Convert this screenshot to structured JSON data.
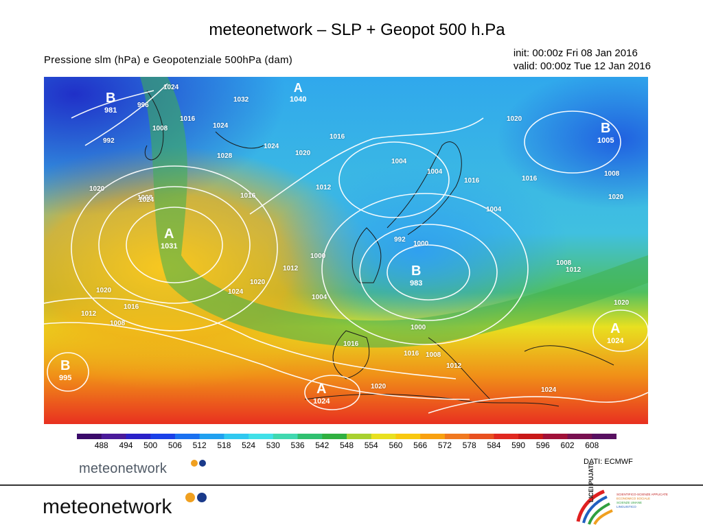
{
  "slide": {
    "title": "meteonetwork – SLP + Geopot 500 h.Pa"
  },
  "map": {
    "header_left": "Pressione slm (hPa) e Geopotenziale 500hPa (dam)",
    "init": "init: 00:00z Fri 08 Jan 2016",
    "valid": "valid: 00:00z Tue 12 Jan 2016",
    "pressure_centers": [
      {
        "type": "B",
        "value": "981"
      },
      {
        "type": "A",
        "value": "1040"
      },
      {
        "type": "B",
        "value": "1005"
      },
      {
        "type": "A",
        "value": "1031"
      },
      {
        "type": "B",
        "value": "983"
      },
      {
        "type": "A",
        "value": "1024"
      },
      {
        "type": "A",
        "value": "1024"
      },
      {
        "type": "B",
        "value": "995"
      }
    ],
    "isobar_labels": [
      "1024",
      "996",
      "1032",
      "1016",
      "1008",
      "992",
      "1024",
      "1028",
      "1024",
      "1016",
      "1020",
      "1004",
      "1016",
      "1012",
      "1020",
      "1008",
      "1016",
      "1004",
      "1000",
      "1004",
      "1016",
      "1008",
      "992",
      "1000",
      "1012",
      "1004",
      "1016",
      "1008",
      "1024",
      "1020",
      "1020",
      "1016",
      "1012",
      "1008",
      "1020",
      "1024",
      "1020",
      "1012",
      "1016",
      "1000",
      "1008",
      "1012",
      "1020",
      "1020",
      "1024"
    ],
    "colorbar": {
      "unit": "dam",
      "labels": [
        "488",
        "494",
        "500",
        "506",
        "512",
        "518",
        "524",
        "530",
        "536",
        "542",
        "548",
        "554",
        "560",
        "566",
        "572",
        "578",
        "584",
        "590",
        "596",
        "602",
        "608"
      ],
      "colors": [
        "#3a0a6a",
        "#4a1a9a",
        "#2a20c8",
        "#1a40e8",
        "#1a70f0",
        "#20a0f0",
        "#30c8f0",
        "#40e0e8",
        "#40d8b0",
        "#30c070",
        "#30b040",
        "#a8d030",
        "#e8e020",
        "#f8c810",
        "#f8a010",
        "#f07820",
        "#e85020",
        "#e02820",
        "#c81818",
        "#a01038",
        "#781050",
        "#581060"
      ],
      "source": "DATI:  ECMWF"
    }
  },
  "branding": {
    "small_logo": "meteonetwork",
    "big_logo": "meteonetwork",
    "partner_lines": [
      "SCIENTIFICO-SCIENZE APPLICATE",
      "ECONOMICO SOCIALE",
      "SCIENZE UMANE",
      "LINGUISTICO"
    ],
    "partner_name": "LICEI PUJATI",
    "dot_orange": "#f0a020",
    "dot_blue": "#1a3a8a"
  }
}
